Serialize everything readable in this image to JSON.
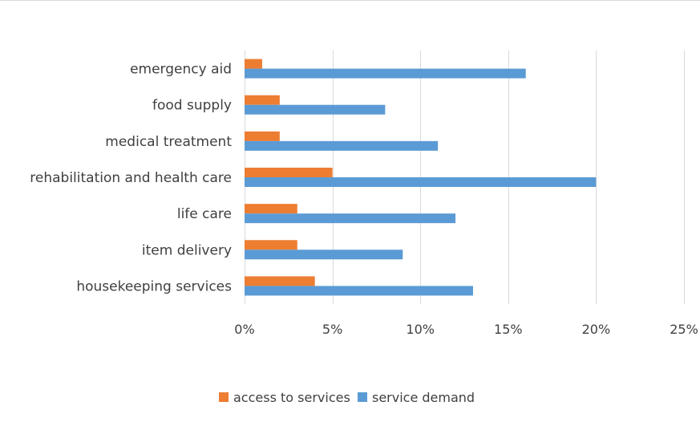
{
  "chart_data": {
    "type": "bar",
    "orientation": "horizontal",
    "title": "",
    "xlabel": "",
    "ylabel": "",
    "categories": [
      "emergency aid",
      "food supply",
      "medical treatment",
      "rehabilitation and health care",
      "life care",
      "item delivery",
      "housekeeping services"
    ],
    "series": [
      {
        "name": "access to services",
        "color": "#ed7d31",
        "values": [
          1,
          2,
          2,
          5,
          3,
          3,
          4
        ]
      },
      {
        "name": "service demand",
        "color": "#5b9bd5",
        "values": [
          16,
          8,
          11,
          20,
          12,
          9,
          13
        ]
      }
    ],
    "xlim": [
      0,
      25
    ],
    "x_ticks": [
      0,
      5,
      10,
      15,
      20,
      25
    ],
    "x_tick_labels": [
      "0%",
      "5%",
      "10%",
      "15%",
      "20%",
      "25%"
    ],
    "value_unit": "%",
    "grid": "vertical",
    "gridline_color": "#d9d9d9",
    "legend_position": "bottom"
  }
}
